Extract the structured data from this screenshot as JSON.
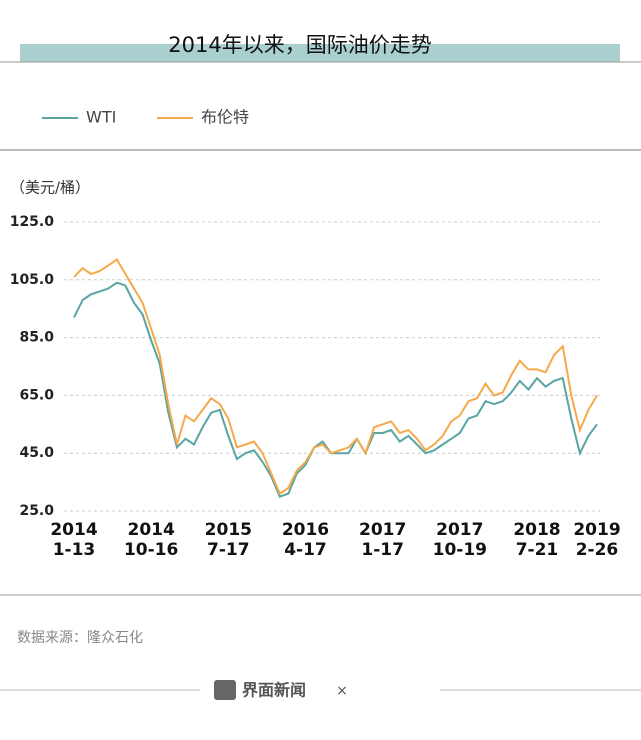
{
  "chart_data": {
    "type": "line",
    "title": "2014年以来，国际油价走势",
    "y_label": "（美元/桶）",
    "categories": [
      "2014\n1-13",
      null,
      null,
      null,
      null,
      null,
      null,
      null,
      null,
      "2014\n10-16",
      null,
      null,
      null,
      null,
      null,
      null,
      null,
      null,
      "2015\n7-17",
      null,
      null,
      null,
      null,
      null,
      null,
      null,
      null,
      "2016\n4-17",
      null,
      null,
      null,
      null,
      null,
      null,
      null,
      null,
      "2017\n1-17",
      null,
      null,
      null,
      null,
      null,
      null,
      null,
      null,
      "2017\n10-19",
      null,
      null,
      null,
      null,
      null,
      null,
      null,
      null,
      "2018\n7-21",
      null,
      null,
      null,
      null,
      null,
      null,
      "2019\n2-26"
    ],
    "series": [
      {
        "name": "WTI",
        "color": "#5aa4a4",
        "values": [
          92,
          98,
          100,
          101,
          102,
          104,
          103,
          97,
          93,
          84,
          76,
          59,
          47,
          50,
          48,
          54,
          59,
          60,
          51,
          43,
          45,
          46,
          42,
          37,
          30,
          31,
          38,
          41,
          47,
          49,
          45,
          45,
          45,
          50,
          45,
          52,
          52,
          53,
          49,
          51,
          48,
          45,
          46,
          48,
          50,
          52,
          57,
          58,
          63,
          62,
          63,
          66,
          70,
          67,
          71,
          68,
          70,
          71,
          57,
          45,
          51,
          55
        ]
      },
      {
        "name": "布伦特",
        "color": "#f5a94a",
        "values": [
          106,
          109,
          107,
          108,
          110,
          112,
          107,
          102,
          97,
          88,
          79,
          62,
          48,
          58,
          56,
          60,
          64,
          62,
          57,
          47,
          48,
          49,
          45,
          38,
          31,
          33,
          39,
          42,
          47,
          48,
          45,
          46,
          47,
          50,
          45,
          54,
          55,
          56,
          52,
          53,
          50,
          46,
          48,
          51,
          56,
          58,
          63,
          64,
          69,
          65,
          66,
          72,
          77,
          74,
          74,
          73,
          79,
          82,
          65,
          53,
          60,
          65
        ]
      }
    ],
    "ylim": [
      25,
      125
    ],
    "yticks": [
      {
        "value": 25,
        "label": "25.0"
      },
      {
        "value": 45,
        "label": "45.0"
      },
      {
        "value": 65,
        "label": "65.0"
      },
      {
        "value": 85,
        "label": "85.0"
      },
      {
        "value": 105,
        "label": "105.0"
      },
      {
        "value": 125,
        "label": "125.0"
      }
    ],
    "grid": true,
    "legend": "top-left"
  },
  "footer": {
    "source": "数据来源：隆众石化",
    "brand": "界面新闻",
    "separator": "×"
  }
}
